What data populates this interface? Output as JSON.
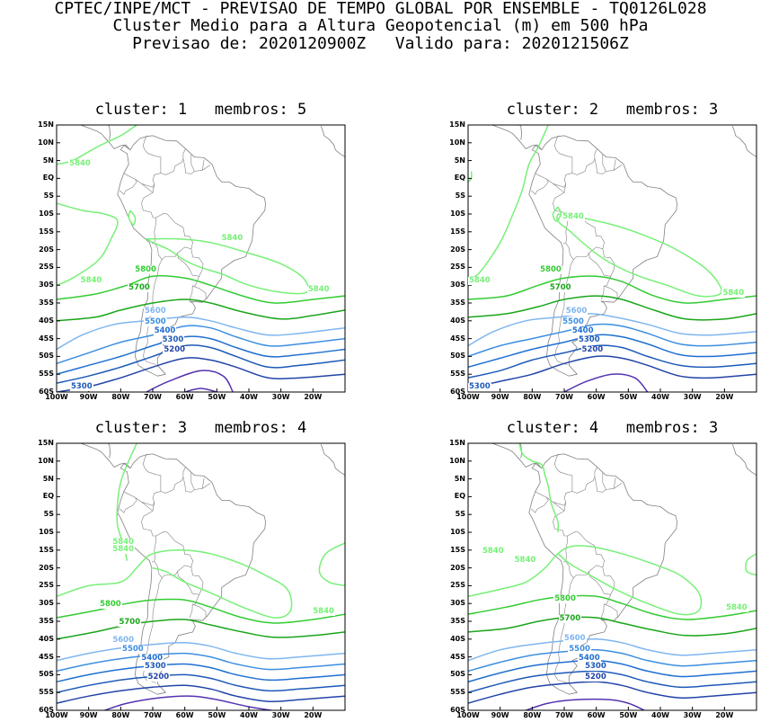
{
  "header": {
    "line1": "CPTEC/INPE/MCT - PREVISAO DE TEMPO GLOBAL POR ENSEMBLE - TQ0126L028",
    "line2": "Cluster Medio para a Altura Geopotencial (m) em 500 hPa",
    "line3": "Previsao de: 2020120900Z   Valido para: 2020121506Z"
  },
  "axes": {
    "lat_labels": [
      "15N",
      "10N",
      "5N",
      "EQ",
      "5S",
      "10S",
      "15S",
      "20S",
      "25S",
      "30S",
      "35S",
      "40S",
      "45S",
      "50S",
      "55S",
      "60S"
    ],
    "lon_labels": [
      "100W",
      "90W",
      "80W",
      "70W",
      "60W",
      "50W",
      "40W",
      "30W",
      "20W"
    ]
  },
  "colors": {
    "c5840": "#77f077",
    "c5800": "#33cc33",
    "c5700": "#1aa61a",
    "c5600": "#7fb6f0",
    "c5500": "#3c8ee0",
    "c5400": "#1f6fd0",
    "c5300": "#1d59b8",
    "c5200": "#2244a8",
    "c5100": "#5533b0",
    "coast": "#808080"
  },
  "panels": [
    {
      "title": "cluster: 1   membros: 5",
      "labels": [
        {
          "text": "5840",
          "level": "5840"
        },
        {
          "text": "5840",
          "level": "5840"
        },
        {
          "text": "5840",
          "level": "5840"
        },
        {
          "text": "5840",
          "level": "5840"
        },
        {
          "text": "5800",
          "level": "5800"
        },
        {
          "text": "5700",
          "level": "5700"
        },
        {
          "text": "5600",
          "level": "5600"
        },
        {
          "text": "5500",
          "level": "5500"
        },
        {
          "text": "5400",
          "level": "5400"
        },
        {
          "text": "5300",
          "level": "5300"
        },
        {
          "text": "5200",
          "level": "5200"
        },
        {
          "text": "5300",
          "level": "5300"
        }
      ]
    },
    {
      "title": "cluster: 2   membros: 3",
      "labels": [
        {
          "text": "5840",
          "level": "5840"
        },
        {
          "text": "5840",
          "level": "5840"
        },
        {
          "text": "5840",
          "level": "5840"
        },
        {
          "text": "5800",
          "level": "5800"
        },
        {
          "text": "5700",
          "level": "5700"
        },
        {
          "text": "5600",
          "level": "5600"
        },
        {
          "text": "5500",
          "level": "5500"
        },
        {
          "text": "5400",
          "level": "5400"
        },
        {
          "text": "5300",
          "level": "5300"
        },
        {
          "text": "5200",
          "level": "5200"
        },
        {
          "text": "5300",
          "level": "5300"
        }
      ]
    },
    {
      "title": "cluster: 3   membros: 4",
      "labels": [
        {
          "text": "5840",
          "level": "5840"
        },
        {
          "text": "5840",
          "level": "5840"
        },
        {
          "text": "5840",
          "level": "5840"
        },
        {
          "text": "5800",
          "level": "5800"
        },
        {
          "text": "5700",
          "level": "5700"
        },
        {
          "text": "5600",
          "level": "5600"
        },
        {
          "text": "5500",
          "level": "5500"
        },
        {
          "text": "5400",
          "level": "5400"
        },
        {
          "text": "5300",
          "level": "5300"
        },
        {
          "text": "5200",
          "level": "5200"
        }
      ]
    },
    {
      "title": "cluster: 4   membros: 3",
      "labels": [
        {
          "text": "5840",
          "level": "5840"
        },
        {
          "text": "5840",
          "level": "5840"
        },
        {
          "text": "5840",
          "level": "5840"
        },
        {
          "text": "5800",
          "level": "5800"
        },
        {
          "text": "5700",
          "level": "5700"
        },
        {
          "text": "5600",
          "level": "5600"
        },
        {
          "text": "5500",
          "level": "5500"
        },
        {
          "text": "5400",
          "level": "5400"
        },
        {
          "text": "5300",
          "level": "5300"
        },
        {
          "text": "5200",
          "level": "5200"
        }
      ]
    }
  ]
}
